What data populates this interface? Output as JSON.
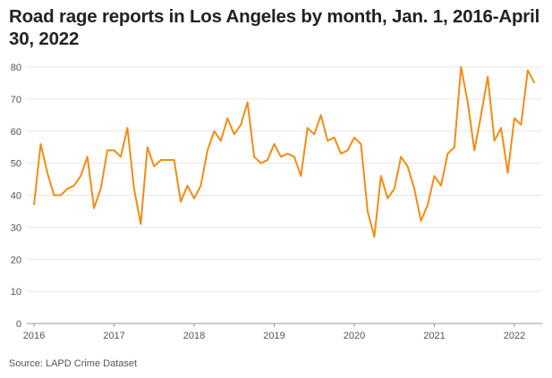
{
  "title": "Road rage reports in Los Angeles by month, Jan. 1, 2016-April 30, 2022",
  "source": "Source: LAPD Crime Dataset",
  "colors": {
    "line": "#f28c14",
    "grid": "#e5e5e5",
    "axis": "#999999"
  },
  "chart_data": {
    "type": "line",
    "title": "Road rage reports in Los Angeles by month, Jan. 1, 2016-April 30, 2022",
    "xlabel": "",
    "ylabel": "",
    "ylim": [
      0,
      80
    ],
    "yticks": [
      0,
      10,
      20,
      30,
      40,
      50,
      60,
      70,
      80
    ],
    "xlim": [
      "2016-01",
      "2022-04"
    ],
    "xticks": [
      "2016",
      "2017",
      "2018",
      "2019",
      "2020",
      "2021",
      "2022"
    ],
    "grid": true,
    "legend": "none",
    "x": [
      "2016-01",
      "2016-02",
      "2016-03",
      "2016-04",
      "2016-05",
      "2016-06",
      "2016-07",
      "2016-08",
      "2016-09",
      "2016-10",
      "2016-11",
      "2016-12",
      "2017-01",
      "2017-02",
      "2017-03",
      "2017-04",
      "2017-05",
      "2017-06",
      "2017-07",
      "2017-08",
      "2017-09",
      "2017-10",
      "2017-11",
      "2017-12",
      "2018-01",
      "2018-02",
      "2018-03",
      "2018-04",
      "2018-05",
      "2018-06",
      "2018-07",
      "2018-08",
      "2018-09",
      "2018-10",
      "2018-11",
      "2018-12",
      "2019-01",
      "2019-02",
      "2019-03",
      "2019-04",
      "2019-05",
      "2019-06",
      "2019-07",
      "2019-08",
      "2019-09",
      "2019-10",
      "2019-11",
      "2019-12",
      "2020-01",
      "2020-02",
      "2020-03",
      "2020-04",
      "2020-05",
      "2020-06",
      "2020-07",
      "2020-08",
      "2020-09",
      "2020-10",
      "2020-11",
      "2020-12",
      "2021-01",
      "2021-02",
      "2021-03",
      "2021-04",
      "2021-05",
      "2021-06",
      "2021-07",
      "2021-08",
      "2021-09",
      "2021-10",
      "2021-11",
      "2021-12",
      "2022-01",
      "2022-02",
      "2022-03",
      "2022-04"
    ],
    "values": [
      37,
      56,
      47,
      40,
      40,
      42,
      43,
      46,
      52,
      36,
      42,
      54,
      54,
      52,
      61,
      42,
      31,
      55,
      49,
      51,
      51,
      51,
      38,
      43,
      39,
      43,
      54,
      60,
      57,
      64,
      59,
      62,
      69,
      52,
      50,
      51,
      56,
      52,
      53,
      52,
      46,
      61,
      59,
      65,
      57,
      58,
      53,
      54,
      58,
      56,
      35,
      27,
      46,
      39,
      42,
      52,
      49,
      42,
      32,
      37,
      46,
      43,
      53,
      55,
      80,
      69,
      54,
      65,
      77,
      57,
      61,
      47,
      64,
      62,
      79,
      75
    ]
  }
}
